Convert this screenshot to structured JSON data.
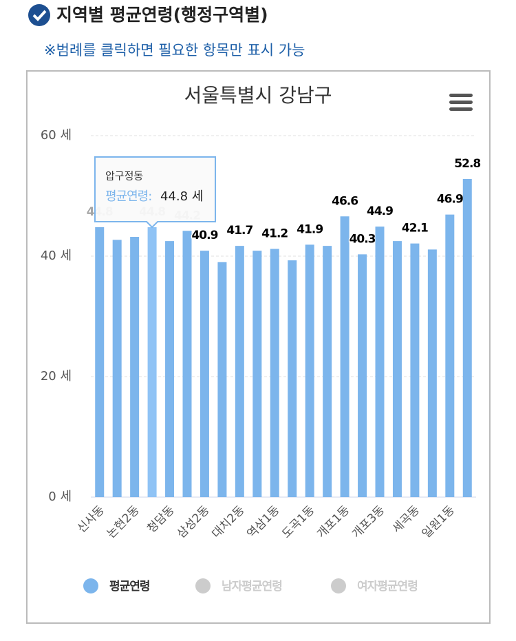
{
  "header": {
    "title": "지역별 평균연령(행정구역별)",
    "note": "※범례를 클릭하면 필요한 항목만 표시 가능"
  },
  "chart_data": {
    "type": "bar",
    "title": "서울특별시 강남구",
    "categories": [
      "신사동",
      null,
      "논현2동",
      null,
      "청담동",
      null,
      "삼성2동",
      null,
      "대치2동",
      null,
      "역삼1동",
      null,
      "도곡1동",
      null,
      "개포1동",
      null,
      "개포3동",
      null,
      "세곡동",
      null,
      "일원1동",
      null
    ],
    "series": [
      {
        "name": "평균연령",
        "color": "#7cb5ec",
        "visible": true,
        "values": [
          44.8,
          42.7,
          43.2,
          44.8,
          42.5,
          44.2,
          40.9,
          39.0,
          41.7,
          40.9,
          41.2,
          39.3,
          41.9,
          41.7,
          46.6,
          40.3,
          44.9,
          42.5,
          42.1,
          41.1,
          46.9,
          52.8
        ],
        "value_labels": [
          "44.8",
          null,
          null,
          "44.8",
          null,
          "44.2",
          "40.9",
          null,
          "41.7",
          null,
          "41.2",
          null,
          "41.9",
          null,
          "46.6",
          "40.3",
          "44.9",
          null,
          "42.1",
          null,
          "46.9",
          "52.8"
        ]
      },
      {
        "name": "남자평균연령",
        "color": "#cccccc",
        "visible": false,
        "values": [
          null,
          null,
          null,
          null,
          null,
          null,
          null,
          null,
          null,
          null,
          null,
          null,
          null,
          null,
          null,
          null,
          null,
          null,
          null,
          null,
          null,
          null
        ]
      },
      {
        "name": "여자평균연령",
        "color": "#cccccc",
        "visible": false,
        "values": [
          null,
          null,
          null,
          null,
          null,
          null,
          null,
          null,
          null,
          null,
          null,
          null,
          null,
          null,
          null,
          null,
          null,
          null,
          null,
          null,
          null,
          null
        ]
      }
    ],
    "ylim": [
      0,
      60
    ],
    "yticks": [
      {
        "value": 0,
        "label": "0 세"
      },
      {
        "value": 20,
        "label": "20 세"
      },
      {
        "value": 40,
        "label": "40 세"
      },
      {
        "value": 60,
        "label": "60 세"
      }
    ],
    "grid": true,
    "tooltip": {
      "index": 3,
      "category": "압구정동",
      "series": "평균연령:",
      "value_label": "44.8 세"
    }
  }
}
